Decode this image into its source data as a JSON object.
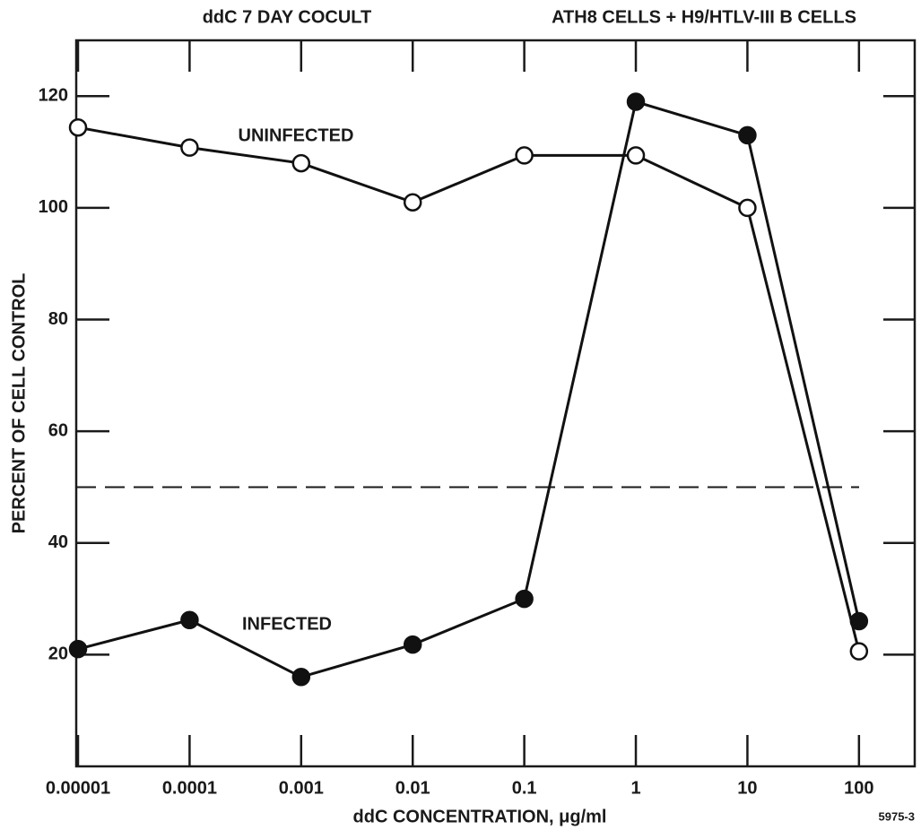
{
  "chart_data": {
    "type": "line",
    "title_left": "ddC 7 DAY COCULT",
    "title_right": "ATH8 CELLS + H9/HTLV-III B CELLS",
    "x_label": "ddC CONCENTRATION, μg/ml",
    "y_label": "PERCENT OF CELL CONTROL",
    "annotation": "5975-3",
    "x": [
      1e-05,
      0.0001,
      0.001,
      0.01,
      0.1,
      1,
      10,
      100
    ],
    "x_log": true,
    "xlim": [
      1e-05,
      316
    ],
    "xticks": [
      {
        "value": 1e-05,
        "label": "0.00001"
      },
      0.0001,
      0.001,
      0.01,
      0.1,
      1,
      10,
      100
    ],
    "ylim": [
      0,
      130
    ],
    "yticks": [
      20,
      40,
      60,
      80,
      100,
      120
    ],
    "reference_line": 50,
    "series": [
      {
        "name": "UNINFECTED",
        "color": "#111111",
        "marker_fill": "#ffffff",
        "values": [
          114.4,
          110.8,
          108,
          101,
          109.4,
          109.4,
          100,
          20.6
        ]
      },
      {
        "name": "INFECTED",
        "color": "#111111",
        "marker_fill": "#111111",
        "values": [
          21,
          26.2,
          16,
          21.8,
          30,
          119,
          113,
          26
        ]
      }
    ]
  }
}
